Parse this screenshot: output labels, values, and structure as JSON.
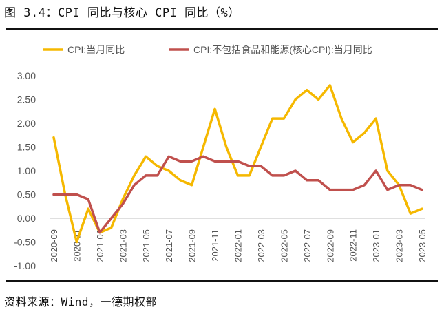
{
  "figure": {
    "title": "图 3.4：CPI 同比与核心 CPI 同比（%）",
    "source": "资料来源：Wind，一德期权部"
  },
  "chart_data": {
    "type": "line",
    "x": [
      "2020-09",
      "2020-10",
      "2020-11",
      "2020-12",
      "2021-01",
      "2021-02",
      "2021-03",
      "2021-04",
      "2021-05",
      "2021-06",
      "2021-07",
      "2021-08",
      "2021-09",
      "2021-10",
      "2021-11",
      "2021-12",
      "2022-01",
      "2022-02",
      "2022-03",
      "2022-04",
      "2022-05",
      "2022-06",
      "2022-07",
      "2022-08",
      "2022-09",
      "2022-10",
      "2022-11",
      "2022-12",
      "2023-01",
      "2023-02",
      "2023-03",
      "2023-04",
      "2023-05"
    ],
    "tick_labels": [
      "2020-09",
      "2020-11",
      "2021-01",
      "2021-03",
      "2021-05",
      "2021-07",
      "2021-09",
      "2021-11",
      "2022-01",
      "2022-03",
      "2022-05",
      "2022-07",
      "2022-09",
      "2022-11",
      "2023-01",
      "2023-03",
      "2023-05"
    ],
    "y_ticks": [
      "3.00",
      "2.50",
      "2.00",
      "1.50",
      "1.00",
      "0.50",
      "0.00",
      "-0.50",
      "-1.00"
    ],
    "ylim": [
      -1.0,
      3.0
    ],
    "grid": false,
    "legend_position": "top",
    "series": [
      {
        "name": "CPI:当月同比",
        "color": "#F5B800",
        "values": [
          1.7,
          0.5,
          -0.5,
          0.2,
          -0.3,
          -0.2,
          0.4,
          0.9,
          1.3,
          1.1,
          1.0,
          0.8,
          0.7,
          1.5,
          2.3,
          1.5,
          0.9,
          0.9,
          1.5,
          2.1,
          2.1,
          2.5,
          2.7,
          2.5,
          2.8,
          2.1,
          1.6,
          1.8,
          2.1,
          1.0,
          0.7,
          0.1,
          0.2
        ]
      },
      {
        "name": "CPI:不包括食品和能源(核心CPI):当月同比",
        "color": "#C0504D",
        "values": [
          0.5,
          0.5,
          0.5,
          0.4,
          -0.3,
          0.0,
          0.3,
          0.7,
          0.9,
          0.9,
          1.3,
          1.2,
          1.2,
          1.3,
          1.2,
          1.2,
          1.2,
          1.1,
          1.1,
          0.9,
          0.9,
          1.0,
          0.8,
          0.8,
          0.6,
          0.6,
          0.6,
          0.7,
          1.0,
          0.6,
          0.7,
          0.7,
          0.6
        ]
      }
    ]
  }
}
